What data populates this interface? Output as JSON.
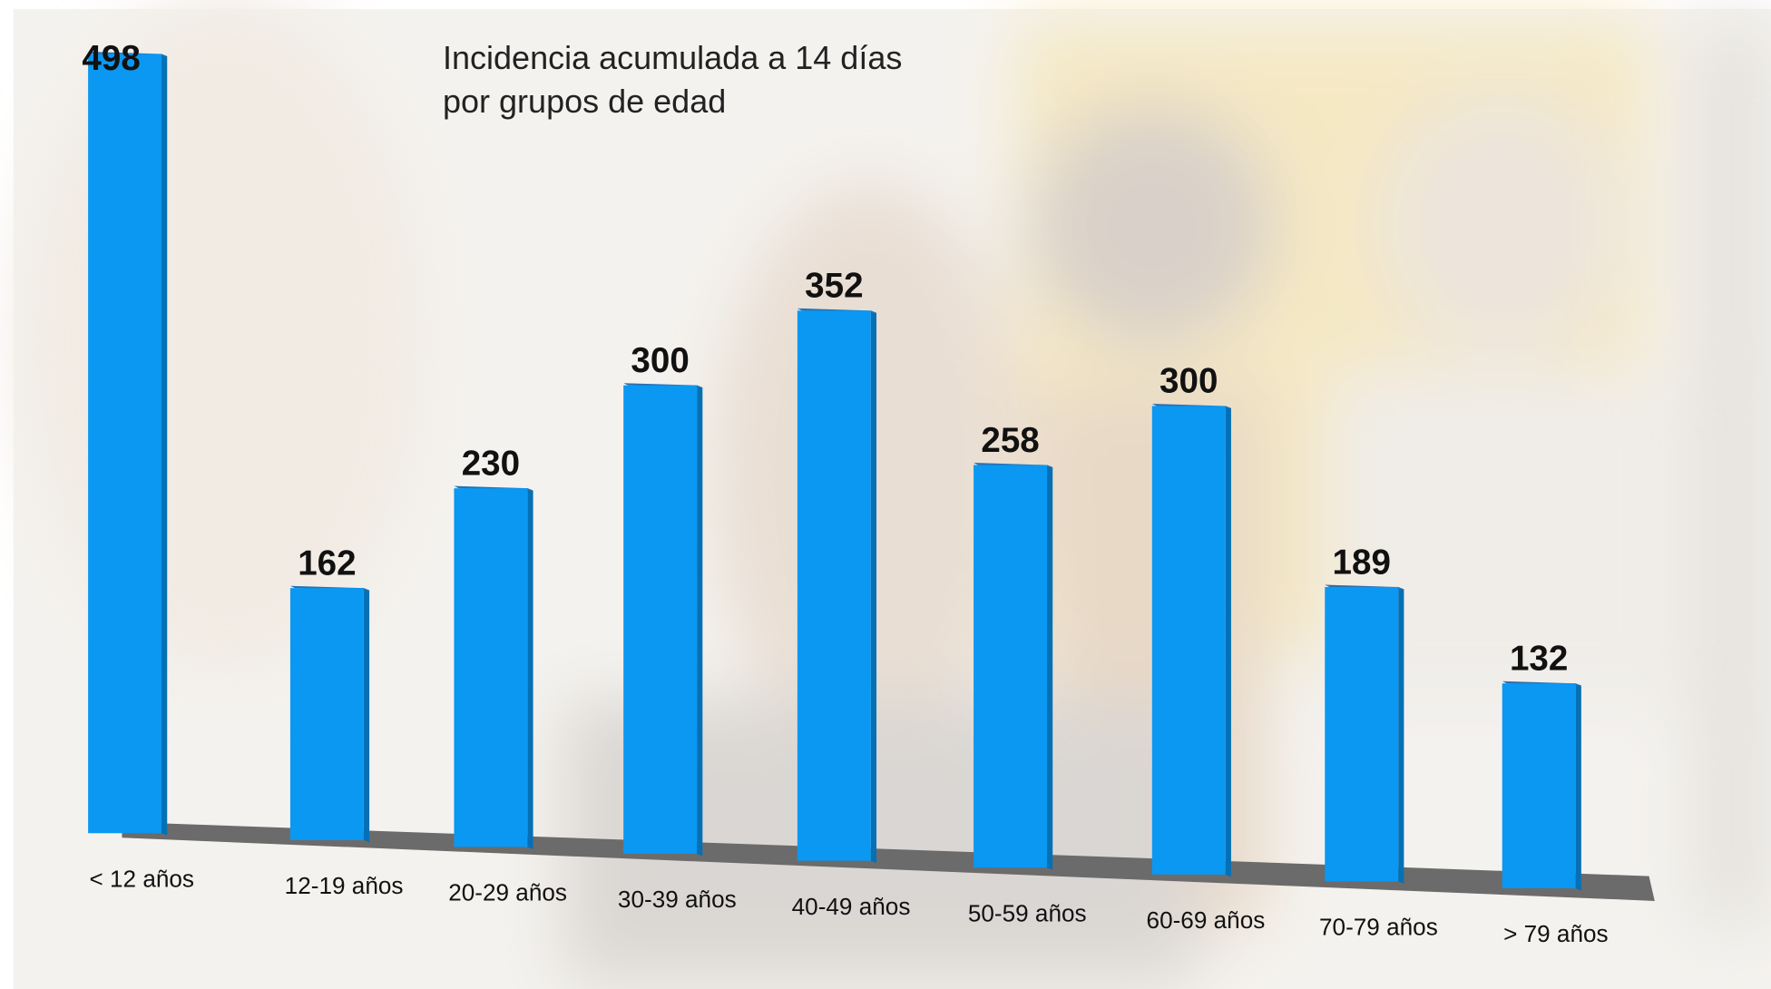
{
  "chart_data": {
    "type": "bar",
    "title": "Incidencia acumulada a 14 días por grupos de edad",
    "categories": [
      "< 12 años",
      "12-19 años",
      "20-29 años",
      "30-39 años",
      "40-49 años",
      "50-59 años",
      "60-69 años",
      "70-79 años",
      "> 79 años"
    ],
    "values": [
      498,
      162,
      230,
      300,
      352,
      258,
      300,
      189,
      132
    ],
    "color": "#0a98f2"
  }
}
